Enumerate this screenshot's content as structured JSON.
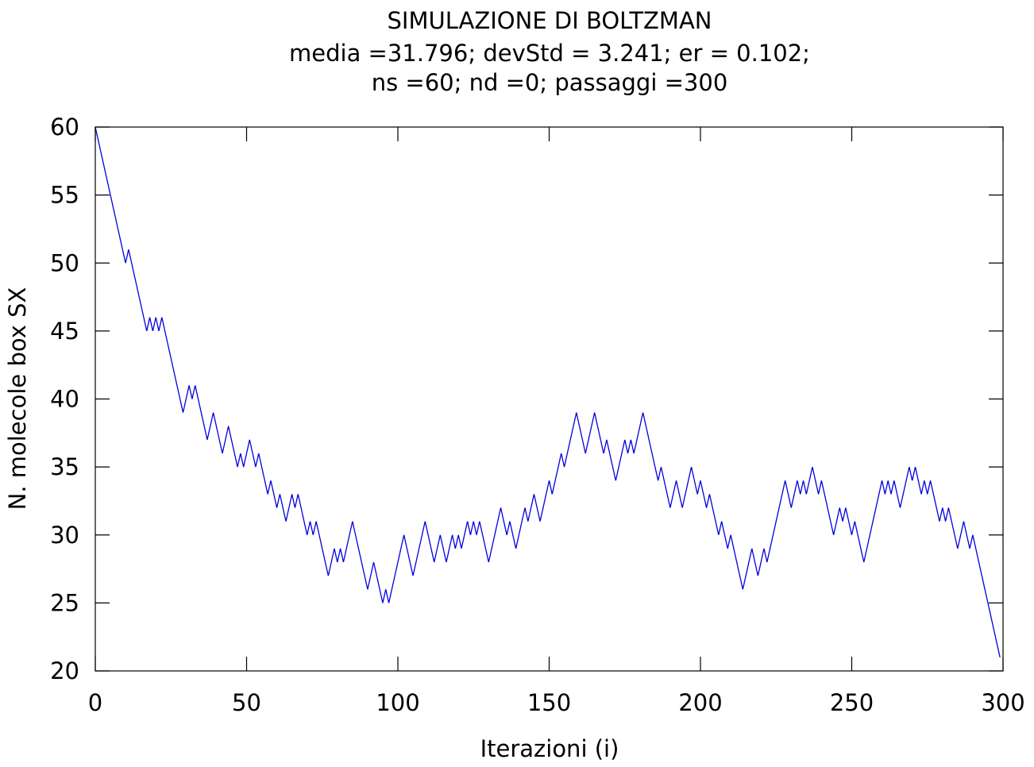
{
  "chart_data": {
    "type": "line",
    "title": "SIMULAZIONE DI BOLTZMAN",
    "subtitle_lines": [
      "media =31.796; devStd = 3.241; er = 0.102;",
      "ns =60; nd =0; passaggi =300"
    ],
    "xlabel": "Iterazioni (i)",
    "ylabel": "N. molecole box SX",
    "xlim": [
      0,
      300
    ],
    "ylim": [
      20,
      60
    ],
    "xticks": [
      0,
      50,
      100,
      150,
      200,
      250,
      300
    ],
    "yticks": [
      20,
      25,
      30,
      35,
      40,
      45,
      50,
      55,
      60
    ],
    "grid": false,
    "series_color": "#0000dd",
    "series": [
      {
        "values": [
          60,
          59,
          58,
          57,
          56,
          55,
          54,
          53,
          52,
          51,
          50,
          51,
          50,
          49,
          48,
          47,
          46,
          45,
          46,
          45,
          46,
          45,
          46,
          45,
          44,
          43,
          42,
          41,
          40,
          39,
          40,
          41,
          40,
          41,
          40,
          39,
          38,
          37,
          38,
          39,
          38,
          37,
          36,
          37,
          38,
          37,
          36,
          35,
          36,
          35,
          36,
          37,
          36,
          35,
          36,
          35,
          34,
          33,
          34,
          33,
          32,
          33,
          32,
          31,
          32,
          33,
          32,
          33,
          32,
          31,
          30,
          31,
          30,
          31,
          30,
          29,
          28,
          27,
          28,
          29,
          28,
          29,
          28,
          29,
          30,
          31,
          30,
          29,
          28,
          27,
          26,
          27,
          28,
          27,
          26,
          25,
          26,
          25,
          26,
          27,
          28,
          29,
          30,
          29,
          28,
          27,
          28,
          29,
          30,
          31,
          30,
          29,
          28,
          29,
          30,
          29,
          28,
          29,
          30,
          29,
          30,
          29,
          30,
          31,
          30,
          31,
          30,
          31,
          30,
          29,
          28,
          29,
          30,
          31,
          32,
          31,
          30,
          31,
          30,
          29,
          30,
          31,
          32,
          31,
          32,
          33,
          32,
          31,
          32,
          33,
          34,
          33,
          34,
          35,
          36,
          35,
          36,
          37,
          38,
          39,
          38,
          37,
          36,
          37,
          38,
          39,
          38,
          37,
          36,
          37,
          36,
          35,
          34,
          35,
          36,
          37,
          36,
          37,
          36,
          37,
          38,
          39,
          38,
          37,
          36,
          35,
          34,
          35,
          34,
          33,
          32,
          33,
          34,
          33,
          32,
          33,
          34,
          35,
          34,
          33,
          34,
          33,
          32,
          33,
          32,
          31,
          30,
          31,
          30,
          29,
          30,
          29,
          28,
          27,
          26,
          27,
          28,
          29,
          28,
          27,
          28,
          29,
          28,
          29,
          30,
          31,
          32,
          33,
          34,
          33,
          32,
          33,
          34,
          33,
          34,
          33,
          34,
          35,
          34,
          33,
          34,
          33,
          32,
          31,
          30,
          31,
          32,
          31,
          32,
          31,
          30,
          31,
          30,
          29,
          28,
          29,
          30,
          31,
          32,
          33,
          34,
          33,
          34,
          33,
          34,
          33,
          32,
          33,
          34,
          35,
          34,
          35,
          34,
          33,
          34,
          33,
          34,
          33,
          32,
          31,
          32,
          31,
          32,
          31,
          30,
          29,
          30,
          31,
          30,
          29,
          30,
          29,
          28,
          27,
          26,
          25,
          24,
          23,
          22,
          21
        ]
      }
    ]
  }
}
